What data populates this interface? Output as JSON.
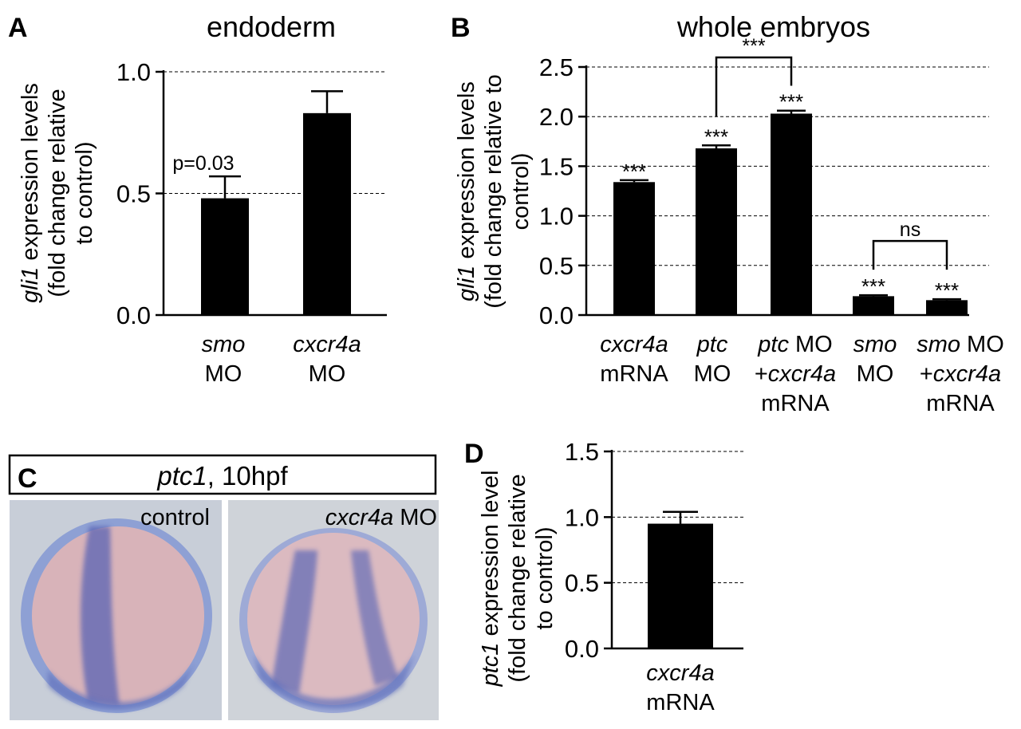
{
  "panels": {
    "A": {
      "letter": "A",
      "title": "endoderm",
      "ylabel_italic": "gli1",
      "ylabel_rest": " expression levels",
      "ylabel_line2": "(fold change relative",
      "ylabel_line3": "to control)",
      "bar_labels": [
        {
          "italic": "smo",
          "line2": "MO"
        },
        {
          "italic": "cxcr4a",
          "line2": "MO"
        }
      ],
      "annotations": [
        "p=0.03"
      ]
    },
    "B": {
      "letter": "B",
      "title": "whole embryos",
      "ylabel_italic": "gli1",
      "ylabel_rest": " expression levels",
      "ylabel_line2": "(fold change relative to",
      "ylabel_line3": "control)",
      "bar_labels": [
        {
          "parts": [
            {
              "t": "cxcr4a",
              "i": true
            }
          ],
          "line2": [
            {
              "t": "mRNA",
              "i": false
            }
          ],
          "line3": []
        },
        {
          "parts": [
            {
              "t": "ptc",
              "i": true
            }
          ],
          "line2": [
            {
              "t": "MO",
              "i": false
            }
          ],
          "line3": []
        },
        {
          "parts": [
            {
              "t": "ptc",
              "i": true
            },
            {
              "t": " MO",
              "i": false
            }
          ],
          "line2": [
            {
              "t": "+",
              "i": false
            },
            {
              "t": "cxcr4a",
              "i": true
            }
          ],
          "line3": [
            {
              "t": "mRNA",
              "i": false
            }
          ]
        },
        {
          "parts": [
            {
              "t": "smo",
              "i": true
            }
          ],
          "line2": [
            {
              "t": "MO",
              "i": false
            }
          ],
          "line3": []
        },
        {
          "parts": [
            {
              "t": "smo",
              "i": true
            },
            {
              "t": " MO",
              "i": false
            }
          ],
          "line2": [
            {
              "t": "+",
              "i": false
            },
            {
              "t": "cxcr4a",
              "i": true
            }
          ],
          "line3": [
            {
              "t": "mRNA",
              "i": false
            }
          ]
        }
      ],
      "stars": "***",
      "ns_label": "ns"
    },
    "C": {
      "letter": "C",
      "header_italic": "ptc1",
      "header_rest": ", 10hpf",
      "left_label": "control",
      "right_label_italic": "cxcr4a",
      "right_label_rest": " MO",
      "colors": {
        "stain": "#4a5db0",
        "tissue": "#d9b3b8",
        "background": "#c9cfd8"
      }
    },
    "D": {
      "letter": "D",
      "ylabel_italic": "ptc1",
      "ylabel_rest": " expression level",
      "ylabel_line2": "(fold change relative",
      "ylabel_line3": "to control)",
      "bar_labels": [
        {
          "italic": "cxcr4a",
          "line2": "mRNA"
        }
      ]
    }
  },
  "chart_data": [
    {
      "panel": "A",
      "type": "bar",
      "title": "endoderm",
      "categories": [
        "smo MO",
        "cxcr4a MO"
      ],
      "values": [
        0.48,
        0.83
      ],
      "errors": [
        0.09,
        0.09
      ],
      "ylabel": "gli1 expression levels (fold change relative to control)",
      "ylim": [
        0,
        1.0
      ],
      "yticks": [
        "0.0",
        "0.5",
        "1.0"
      ],
      "grid": true
    },
    {
      "panel": "B",
      "type": "bar",
      "title": "whole embryos",
      "categories": [
        "cxcr4a mRNA",
        "ptc MO",
        "ptc MO +cxcr4a mRNA",
        "smo MO",
        "smo MO +cxcr4a mRNA"
      ],
      "values": [
        1.34,
        1.68,
        2.03,
        0.19,
        0.15
      ],
      "errors": [
        0.02,
        0.03,
        0.03,
        0.01,
        0.01
      ],
      "significance": [
        "***",
        "***",
        "***",
        "***",
        "***"
      ],
      "comparisons": [
        {
          "from": 1,
          "to": 2,
          "label": "***"
        },
        {
          "from": 3,
          "to": 4,
          "label": "ns"
        }
      ],
      "ylabel": "gli1 expression levels (fold change relative to control)",
      "ylim": [
        0,
        2.5
      ],
      "yticks": [
        "0.0",
        "0.5",
        "1.0",
        "1.5",
        "2.0",
        "2.5"
      ],
      "grid": true
    },
    {
      "panel": "D",
      "type": "bar",
      "categories": [
        "cxcr4a mRNA"
      ],
      "values": [
        0.95
      ],
      "errors": [
        0.09
      ],
      "ylabel": "ptc1 expression level (fold change relative to control)",
      "ylim": [
        0,
        1.5
      ],
      "yticks": [
        "0.0",
        "0.5",
        "1.0",
        "1.5"
      ],
      "grid": true
    }
  ]
}
